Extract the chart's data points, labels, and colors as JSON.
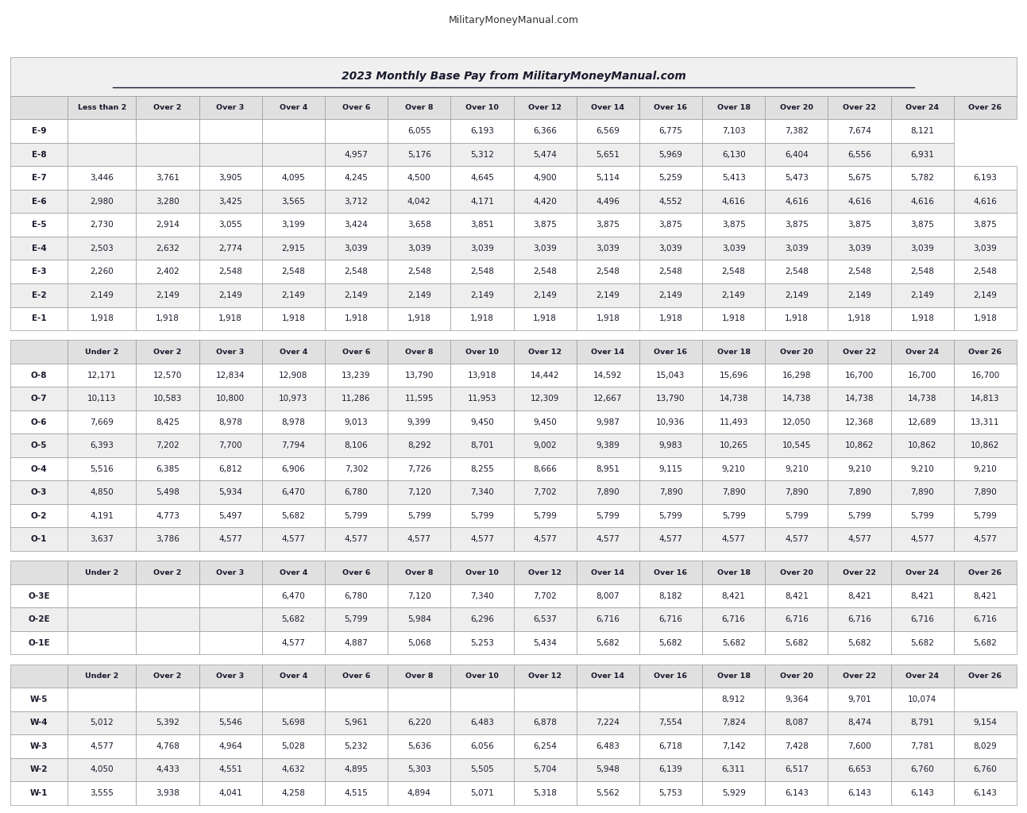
{
  "website": "MilitaryMoneyManual.com",
  "title": "2023 Monthly Base Pay from MilitaryMoneyManual.com",
  "col_headers_enlisted": [
    "Less than 2",
    "Over 2",
    "Over 3",
    "Over 4",
    "Over 6",
    "Over 8",
    "Over 10",
    "Over 12",
    "Over 14",
    "Over 16",
    "Over 18",
    "Over 20",
    "Over 22",
    "Over 24",
    "Over 26"
  ],
  "col_headers_officer": [
    "Under 2",
    "Over 2",
    "Over 3",
    "Over 4",
    "Over 6",
    "Over 8",
    "Over 10",
    "Over 12",
    "Over 14",
    "Over 16",
    "Over 18",
    "Over 20",
    "Over 22",
    "Over 24",
    "Over 26"
  ],
  "enlisted_rows": [
    [
      "E-9",
      "",
      "",
      "",
      "",
      "",
      "6,055",
      "6,193",
      "6,366",
      "6,569",
      "6,775",
      "7,103",
      "7,382",
      "7,674",
      "8,121"
    ],
    [
      "E-8",
      "",
      "",
      "",
      "",
      "4,957",
      "5,176",
      "5,312",
      "5,474",
      "5,651",
      "5,969",
      "6,130",
      "6,404",
      "6,556",
      "6,931"
    ],
    [
      "E-7",
      "3,446",
      "3,761",
      "3,905",
      "4,095",
      "4,245",
      "4,500",
      "4,645",
      "4,900",
      "5,114",
      "5,259",
      "5,413",
      "5,473",
      "5,675",
      "5,782",
      "6,193"
    ],
    [
      "E-6",
      "2,980",
      "3,280",
      "3,425",
      "3,565",
      "3,712",
      "4,042",
      "4,171",
      "4,420",
      "4,496",
      "4,552",
      "4,616",
      "4,616",
      "4,616",
      "4,616",
      "4,616"
    ],
    [
      "E-5",
      "2,730",
      "2,914",
      "3,055",
      "3,199",
      "3,424",
      "3,658",
      "3,851",
      "3,875",
      "3,875",
      "3,875",
      "3,875",
      "3,875",
      "3,875",
      "3,875",
      "3,875"
    ],
    [
      "E-4",
      "2,503",
      "2,632",
      "2,774",
      "2,915",
      "3,039",
      "3,039",
      "3,039",
      "3,039",
      "3,039",
      "3,039",
      "3,039",
      "3,039",
      "3,039",
      "3,039",
      "3,039"
    ],
    [
      "E-3",
      "2,260",
      "2,402",
      "2,548",
      "2,548",
      "2,548",
      "2,548",
      "2,548",
      "2,548",
      "2,548",
      "2,548",
      "2,548",
      "2,548",
      "2,548",
      "2,548",
      "2,548"
    ],
    [
      "E-2",
      "2,149",
      "2,149",
      "2,149",
      "2,149",
      "2,149",
      "2,149",
      "2,149",
      "2,149",
      "2,149",
      "2,149",
      "2,149",
      "2,149",
      "2,149",
      "2,149",
      "2,149"
    ],
    [
      "E-1",
      "1,918",
      "1,918",
      "1,918",
      "1,918",
      "1,918",
      "1,918",
      "1,918",
      "1,918",
      "1,918",
      "1,918",
      "1,918",
      "1,918",
      "1,918",
      "1,918",
      "1,918"
    ]
  ],
  "officer_rows": [
    [
      "O-8",
      "12,171",
      "12,570",
      "12,834",
      "12,908",
      "13,239",
      "13,790",
      "13,918",
      "14,442",
      "14,592",
      "15,043",
      "15,696",
      "16,298",
      "16,700",
      "16,700",
      "16,700"
    ],
    [
      "O-7",
      "10,113",
      "10,583",
      "10,800",
      "10,973",
      "11,286",
      "11,595",
      "11,953",
      "12,309",
      "12,667",
      "13,790",
      "14,738",
      "14,738",
      "14,738",
      "14,738",
      "14,813"
    ],
    [
      "O-6",
      "7,669",
      "8,425",
      "8,978",
      "8,978",
      "9,013",
      "9,399",
      "9,450",
      "9,450",
      "9,987",
      "10,936",
      "11,493",
      "12,050",
      "12,368",
      "12,689",
      "13,311"
    ],
    [
      "O-5",
      "6,393",
      "7,202",
      "7,700",
      "7,794",
      "8,106",
      "8,292",
      "8,701",
      "9,002",
      "9,389",
      "9,983",
      "10,265",
      "10,545",
      "10,862",
      "10,862",
      "10,862"
    ],
    [
      "O-4",
      "5,516",
      "6,385",
      "6,812",
      "6,906",
      "7,302",
      "7,726",
      "8,255",
      "8,666",
      "8,951",
      "9,115",
      "9,210",
      "9,210",
      "9,210",
      "9,210",
      "9,210"
    ],
    [
      "O-3",
      "4,850",
      "5,498",
      "5,934",
      "6,470",
      "6,780",
      "7,120",
      "7,340",
      "7,702",
      "7,890",
      "7,890",
      "7,890",
      "7,890",
      "7,890",
      "7,890",
      "7,890"
    ],
    [
      "O-2",
      "4,191",
      "4,773",
      "5,497",
      "5,682",
      "5,799",
      "5,799",
      "5,799",
      "5,799",
      "5,799",
      "5,799",
      "5,799",
      "5,799",
      "5,799",
      "5,799",
      "5,799"
    ],
    [
      "O-1",
      "3,637",
      "3,786",
      "4,577",
      "4,577",
      "4,577",
      "4,577",
      "4,577",
      "4,577",
      "4,577",
      "4,577",
      "4,577",
      "4,577",
      "4,577",
      "4,577",
      "4,577"
    ]
  ],
  "warrant_e_rows": [
    [
      "O-3E",
      "",
      "",
      "",
      "6,470",
      "6,780",
      "7,120",
      "7,340",
      "7,702",
      "8,007",
      "8,182",
      "8,421",
      "8,421",
      "8,421",
      "8,421",
      "8,421"
    ],
    [
      "O-2E",
      "",
      "",
      "",
      "5,682",
      "5,799",
      "5,984",
      "6,296",
      "6,537",
      "6,716",
      "6,716",
      "6,716",
      "6,716",
      "6,716",
      "6,716",
      "6,716"
    ],
    [
      "O-1E",
      "",
      "",
      "",
      "4,577",
      "4,887",
      "5,068",
      "5,253",
      "5,434",
      "5,682",
      "5,682",
      "5,682",
      "5,682",
      "5,682",
      "5,682",
      "5,682"
    ]
  ],
  "warrant_rows": [
    [
      "W-5",
      "",
      "",
      "",
      "",
      "",
      "",
      "",
      "",
      "",
      "",
      "8,912",
      "9,364",
      "9,701",
      "10,074"
    ],
    [
      "W-4",
      "5,012",
      "5,392",
      "5,546",
      "5,698",
      "5,961",
      "6,220",
      "6,483",
      "6,878",
      "7,224",
      "7,554",
      "7,824",
      "8,087",
      "8,474",
      "8,791",
      "9,154"
    ],
    [
      "W-3",
      "4,577",
      "4,768",
      "4,964",
      "5,028",
      "5,232",
      "5,636",
      "6,056",
      "6,254",
      "6,483",
      "6,718",
      "7,142",
      "7,428",
      "7,600",
      "7,781",
      "8,029"
    ],
    [
      "W-2",
      "4,050",
      "4,433",
      "4,551",
      "4,632",
      "4,895",
      "5,303",
      "5,505",
      "5,704",
      "5,948",
      "6,139",
      "6,311",
      "6,517",
      "6,653",
      "6,760",
      "6,760"
    ],
    [
      "W-1",
      "3,555",
      "3,938",
      "4,041",
      "4,258",
      "4,515",
      "4,894",
      "5,071",
      "5,318",
      "5,562",
      "5,753",
      "5,929",
      "6,143",
      "6,143",
      "6,143",
      "6,143"
    ]
  ],
  "bg_color": "#ffffff",
  "header_bg": "#e8e8e8",
  "row_bg_even": "#ffffff",
  "row_bg_odd": "#f5f5f5",
  "section_header_bg": "#d0d0d0",
  "grid_color": "#999999",
  "text_color": "#1a1a2e",
  "title_color": "#1a1a2e",
  "website_color": "#333333"
}
